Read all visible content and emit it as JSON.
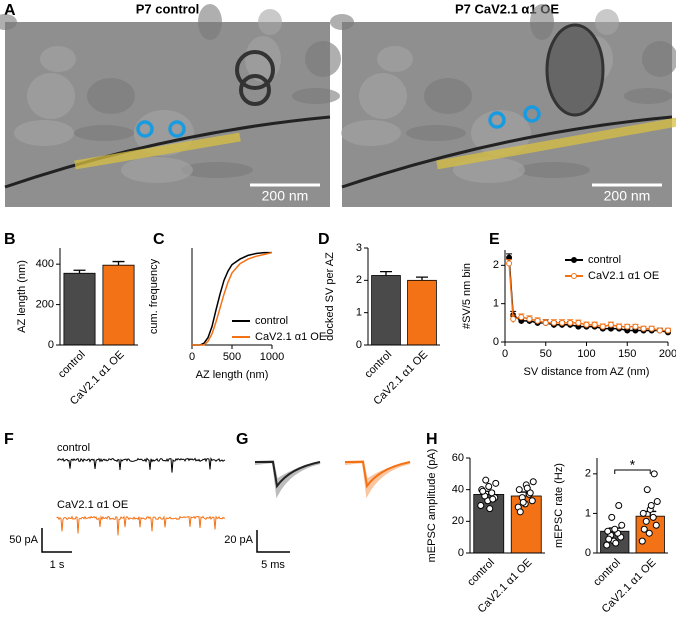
{
  "images": {
    "panel": "A",
    "items": [
      {
        "title": "P7 control",
        "scale": "200 nm"
      },
      {
        "title": "P7 CaV2.1 α1 OE",
        "scale": "200 nm"
      }
    ]
  },
  "traces": [
    {
      "panel": "F",
      "labels": [
        "control",
        "CaV2.1 α1 OE"
      ],
      "yscale": "50 pA",
      "xscale": "1 s"
    },
    {
      "panel": "G",
      "yscale": "20 pA",
      "xscale": "5 ms"
    }
  ],
  "chart_data": [
    {
      "type": "bar",
      "panel": "B",
      "ylabel": "AZ length (nm)",
      "categories": [
        "control",
        "CaV2.1 α1 OE"
      ],
      "values": [
        355,
        395
      ],
      "errors": [
        15,
        18
      ],
      "colors": [
        "#4a4a4a",
        "#f47216"
      ],
      "ylim": [
        0,
        480
      ],
      "yticks": [
        0,
        200,
        400
      ]
    },
    {
      "type": "line",
      "panel": "C",
      "ylabel": "cum. frequency",
      "xlabel": "AZ length (nm)",
      "x": [
        0,
        100,
        150,
        200,
        250,
        300,
        350,
        400,
        450,
        500,
        600,
        700,
        800,
        900,
        1000
      ],
      "series": [
        {
          "name": "control",
          "color": "#000000",
          "values": [
            0,
            0,
            0.02,
            0.08,
            0.2,
            0.38,
            0.55,
            0.7,
            0.8,
            0.87,
            0.93,
            0.97,
            0.99,
            1,
            1
          ]
        },
        {
          "name": "CaV2.1 α1 OE",
          "color": "#f47216",
          "values": [
            0,
            0,
            0,
            0.04,
            0.12,
            0.25,
            0.4,
            0.55,
            0.68,
            0.78,
            0.88,
            0.93,
            0.96,
            0.98,
            1
          ]
        }
      ],
      "xlim": [
        0,
        1000
      ],
      "xticks": [
        0,
        500,
        1000
      ],
      "ylim": [
        0,
        1.05
      ],
      "legend": "bottom-right"
    },
    {
      "type": "bar",
      "panel": "D",
      "ylabel": "docked SV per AZ",
      "categories": [
        "control",
        "CaV2.1 α1 OE"
      ],
      "values": [
        2.15,
        2.0
      ],
      "errors": [
        0.12,
        0.1
      ],
      "colors": [
        "#4a4a4a",
        "#f47216"
      ],
      "ylim": [
        0,
        3
      ],
      "yticks": [
        0,
        1,
        2,
        3
      ]
    },
    {
      "type": "line",
      "panel": "E",
      "ylabel": "#SV/5 nm bin",
      "xlabel": "SV distance from AZ (nm)",
      "markers": true,
      "x": [
        5,
        10,
        20,
        30,
        40,
        50,
        60,
        70,
        80,
        90,
        100,
        110,
        120,
        130,
        140,
        150,
        160,
        170,
        180,
        190,
        200
      ],
      "series": [
        {
          "name": "control",
          "color": "#000000",
          "values": [
            2.2,
            0.7,
            0.55,
            0.55,
            0.5,
            0.5,
            0.45,
            0.45,
            0.45,
            0.4,
            0.4,
            0.4,
            0.35,
            0.35,
            0.35,
            0.3,
            0.3,
            0.3,
            0.3,
            0.3,
            0.25
          ],
          "errors": [
            0.1,
            0.1,
            0.08,
            0.08,
            0.08,
            0.08,
            0.08,
            0.08,
            0.08,
            0.07,
            0.07,
            0.07,
            0.07,
            0.07,
            0.07,
            0.06,
            0.06,
            0.06,
            0.06,
            0.06,
            0.06
          ]
        },
        {
          "name": "CaV2.1 α1 OE",
          "color": "#f47216",
          "values": [
            2.05,
            0.6,
            0.65,
            0.6,
            0.55,
            0.5,
            0.5,
            0.5,
            0.5,
            0.5,
            0.45,
            0.45,
            0.4,
            0.45,
            0.4,
            0.4,
            0.4,
            0.35,
            0.35,
            0.3,
            0.3
          ],
          "errors": [
            0.1,
            0.1,
            0.08,
            0.08,
            0.08,
            0.08,
            0.08,
            0.08,
            0.08,
            0.07,
            0.07,
            0.07,
            0.07,
            0.07,
            0.07,
            0.06,
            0.06,
            0.06,
            0.06,
            0.06,
            0.06
          ]
        }
      ],
      "xlim": [
        0,
        200
      ],
      "xticks": [
        0,
        50,
        100,
        150,
        200
      ],
      "ylim": [
        0,
        2.4
      ],
      "yticks": [
        0,
        1,
        2
      ],
      "legend": "top-right"
    },
    {
      "type": "bar",
      "panel": "H",
      "ylabel": "mEPSC amplitude (pA)",
      "categories": [
        "control",
        "CaV2.1 α1 OE"
      ],
      "values": [
        37,
        36
      ],
      "errors": [
        2,
        2.5
      ],
      "colors": [
        "#4a4a4a",
        "#f47216"
      ],
      "ylim": [
        0,
        60
      ],
      "yticks": [
        0,
        20,
        40,
        60
      ],
      "points": [
        [
          30,
          33,
          35,
          36,
          38,
          40,
          42,
          44,
          46,
          34,
          39,
          28
        ],
        [
          29,
          31,
          33,
          35,
          37,
          40,
          43,
          45,
          32,
          38,
          26,
          41
        ]
      ]
    },
    {
      "type": "bar",
      "ylabel": "mEPSC rate (Hz)",
      "categories": [
        "control",
        "CaV2.1 α1 OE"
      ],
      "values": [
        0.55,
        0.93
      ],
      "errors": [
        0.08,
        0.12
      ],
      "colors": [
        "#4a4a4a",
        "#f47216"
      ],
      "ylim": [
        0,
        2.4
      ],
      "yticks": [
        0,
        1,
        2
      ],
      "points": [
        [
          0.2,
          0.3,
          0.4,
          0.45,
          0.5,
          0.55,
          0.6,
          0.7,
          0.9,
          1.2,
          0.35,
          0.25
        ],
        [
          0.3,
          0.5,
          0.7,
          0.8,
          0.9,
          1.0,
          1.1,
          1.3,
          1.6,
          2.0,
          0.6,
          1.2
        ]
      ],
      "annotation": "*"
    }
  ]
}
